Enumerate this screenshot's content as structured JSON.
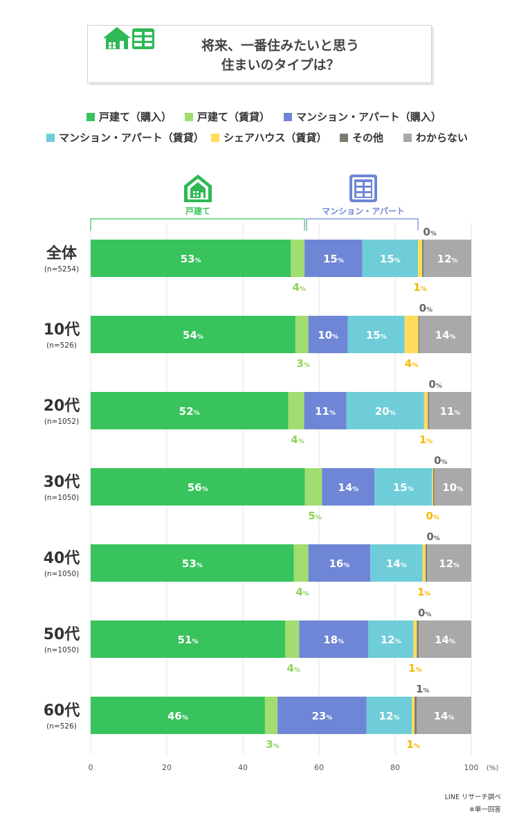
{
  "title": {
    "line1": "将来、一番住みたいと思う",
    "line2": "住まいのタイプは？"
  },
  "legend": [
    {
      "label": "戸建て（購入）",
      "color": "#38c35c"
    },
    {
      "label": "戸建て（賃貸）",
      "color": "#a1dd70"
    },
    {
      "label": "マンション・アパート（購入）",
      "color": "#6f86d6"
    },
    {
      "label": "マンション・アパート（賃貸）",
      "color": "#6ecdd8"
    },
    {
      "label": "シェアハウス（賃貸）",
      "color": "#ffdc5c"
    },
    {
      "label": "その他",
      "color": "#7b7b72"
    },
    {
      "label": "わからない",
      "color": "#a9a9a9"
    }
  ],
  "groups": {
    "house_label": "戸建て",
    "house_color": "#38c35c",
    "mansion_label": "マンション・アパート",
    "mansion_color": "#6f86d6"
  },
  "chart_data": {
    "type": "bar",
    "stacked": true,
    "orientation": "horizontal",
    "categories": [
      "全体",
      "10代",
      "20代",
      "30代",
      "40代",
      "50代",
      "60代"
    ],
    "sample_sizes": [
      "(n=5254)",
      "(n=526)",
      "(n=1052)",
      "(n=1050)",
      "(n=1050)",
      "(n=1050)",
      "(n=526)"
    ],
    "series": [
      {
        "name": "戸建て（購入）",
        "color": "#38c35c",
        "values": [
          52.6,
          53.8,
          51.9,
          56.3,
          53.4,
          51.1,
          45.8
        ]
      },
      {
        "name": "戸建て（賃貸）",
        "color": "#a1dd70",
        "values": [
          3.6,
          3.4,
          4.2,
          4.5,
          3.8,
          3.7,
          3.3
        ]
      },
      {
        "name": "マンション・アパート（購入）",
        "color": "#6f86d6",
        "values": [
          15.2,
          10.4,
          11.1,
          13.8,
          16.3,
          18.1,
          23.4
        ]
      },
      {
        "name": "マンション・アパート（賃貸）",
        "color": "#6ecdd8",
        "values": [
          14.6,
          14.9,
          20.4,
          15.1,
          13.7,
          11.9,
          11.9
        ]
      },
      {
        "name": "シェアハウス（賃貸）",
        "color": "#ffdc5c",
        "values": [
          1.1,
          3.6,
          1.0,
          0.3,
          0.8,
          0.9,
          0.7
        ]
      },
      {
        "name": "その他",
        "color": "#7b7b72",
        "values": [
          0.4,
          0.3,
          0.3,
          0.3,
          0.4,
          0.5,
          0.6
        ]
      },
      {
        "name": "わからない",
        "color": "#a9a9a9",
        "values": [
          12.5,
          13.6,
          11.1,
          9.7,
          11.6,
          13.8,
          14.3
        ]
      }
    ],
    "labels": [
      [
        "53",
        "4",
        "15",
        "15",
        "1",
        "0",
        "12"
      ],
      [
        "54",
        "3",
        "10",
        "15",
        "4",
        "0",
        "14"
      ],
      [
        "52",
        "4",
        "11",
        "20",
        "1",
        "0",
        "11"
      ],
      [
        "56",
        "5",
        "14",
        "15",
        "0",
        "0",
        "10"
      ],
      [
        "53",
        "4",
        "16",
        "14",
        "1",
        "0",
        "12"
      ],
      [
        "51",
        "4",
        "18",
        "12",
        "1",
        "0",
        "14"
      ],
      [
        "46",
        "3",
        "23",
        "12",
        "1",
        "1",
        "14"
      ]
    ],
    "label_unit": "%",
    "xlim": [
      0,
      100
    ],
    "x_ticks": [
      "0",
      "20",
      "40",
      "60",
      "80",
      "100"
    ],
    "x_unit": "(%)",
    "grid": true
  },
  "footer": {
    "source": "LINE リサーチ調べ",
    "note": "※単一回答"
  }
}
